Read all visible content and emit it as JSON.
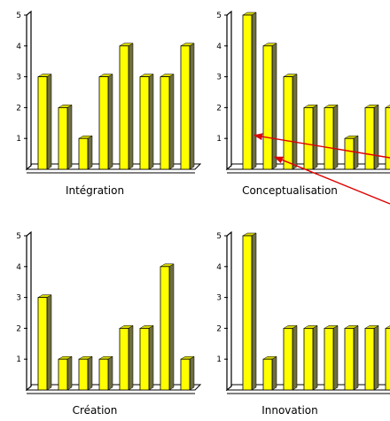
{
  "style": {
    "bar_fill": "#ffff00",
    "bar_shadow": "#6e6e40",
    "axis_color": "#000000",
    "arrow_color": "#e00000",
    "background": "#ffffff"
  },
  "chart_data": [
    {
      "type": "bar",
      "title": "Intégration",
      "values": [
        3,
        2,
        1,
        3,
        4,
        3,
        3,
        4
      ],
      "ylim": [
        0,
        5
      ],
      "yticks": [
        "1",
        "2",
        "3",
        "4",
        "5"
      ],
      "grid": false
    },
    {
      "type": "bar",
      "title": "Conceptualisation",
      "values": [
        5,
        4,
        3,
        2,
        2,
        1,
        2,
        2
      ],
      "ylim": [
        0,
        5
      ],
      "yticks": [
        "1",
        "2",
        "3",
        "4",
        "5"
      ],
      "grid": false,
      "annotations": [
        {
          "kind": "arrow",
          "points_to_bar": 1,
          "at_value": 1.1
        },
        {
          "kind": "arrow",
          "points_to_bar": 2,
          "at_value": 0.4
        }
      ]
    },
    {
      "type": "bar",
      "title": "Création",
      "values": [
        3,
        1,
        1,
        1,
        2,
        2,
        4,
        1
      ],
      "ylim": [
        0,
        5
      ],
      "yticks": [
        "1",
        "2",
        "3",
        "4",
        "5"
      ],
      "grid": false
    },
    {
      "type": "bar",
      "title": "Innovation",
      "values": [
        5,
        1,
        2,
        2,
        2,
        2,
        2,
        2
      ],
      "ylim": [
        0,
        5
      ],
      "yticks": [
        "1",
        "2",
        "3",
        "4",
        "5"
      ],
      "grid": false
    }
  ]
}
